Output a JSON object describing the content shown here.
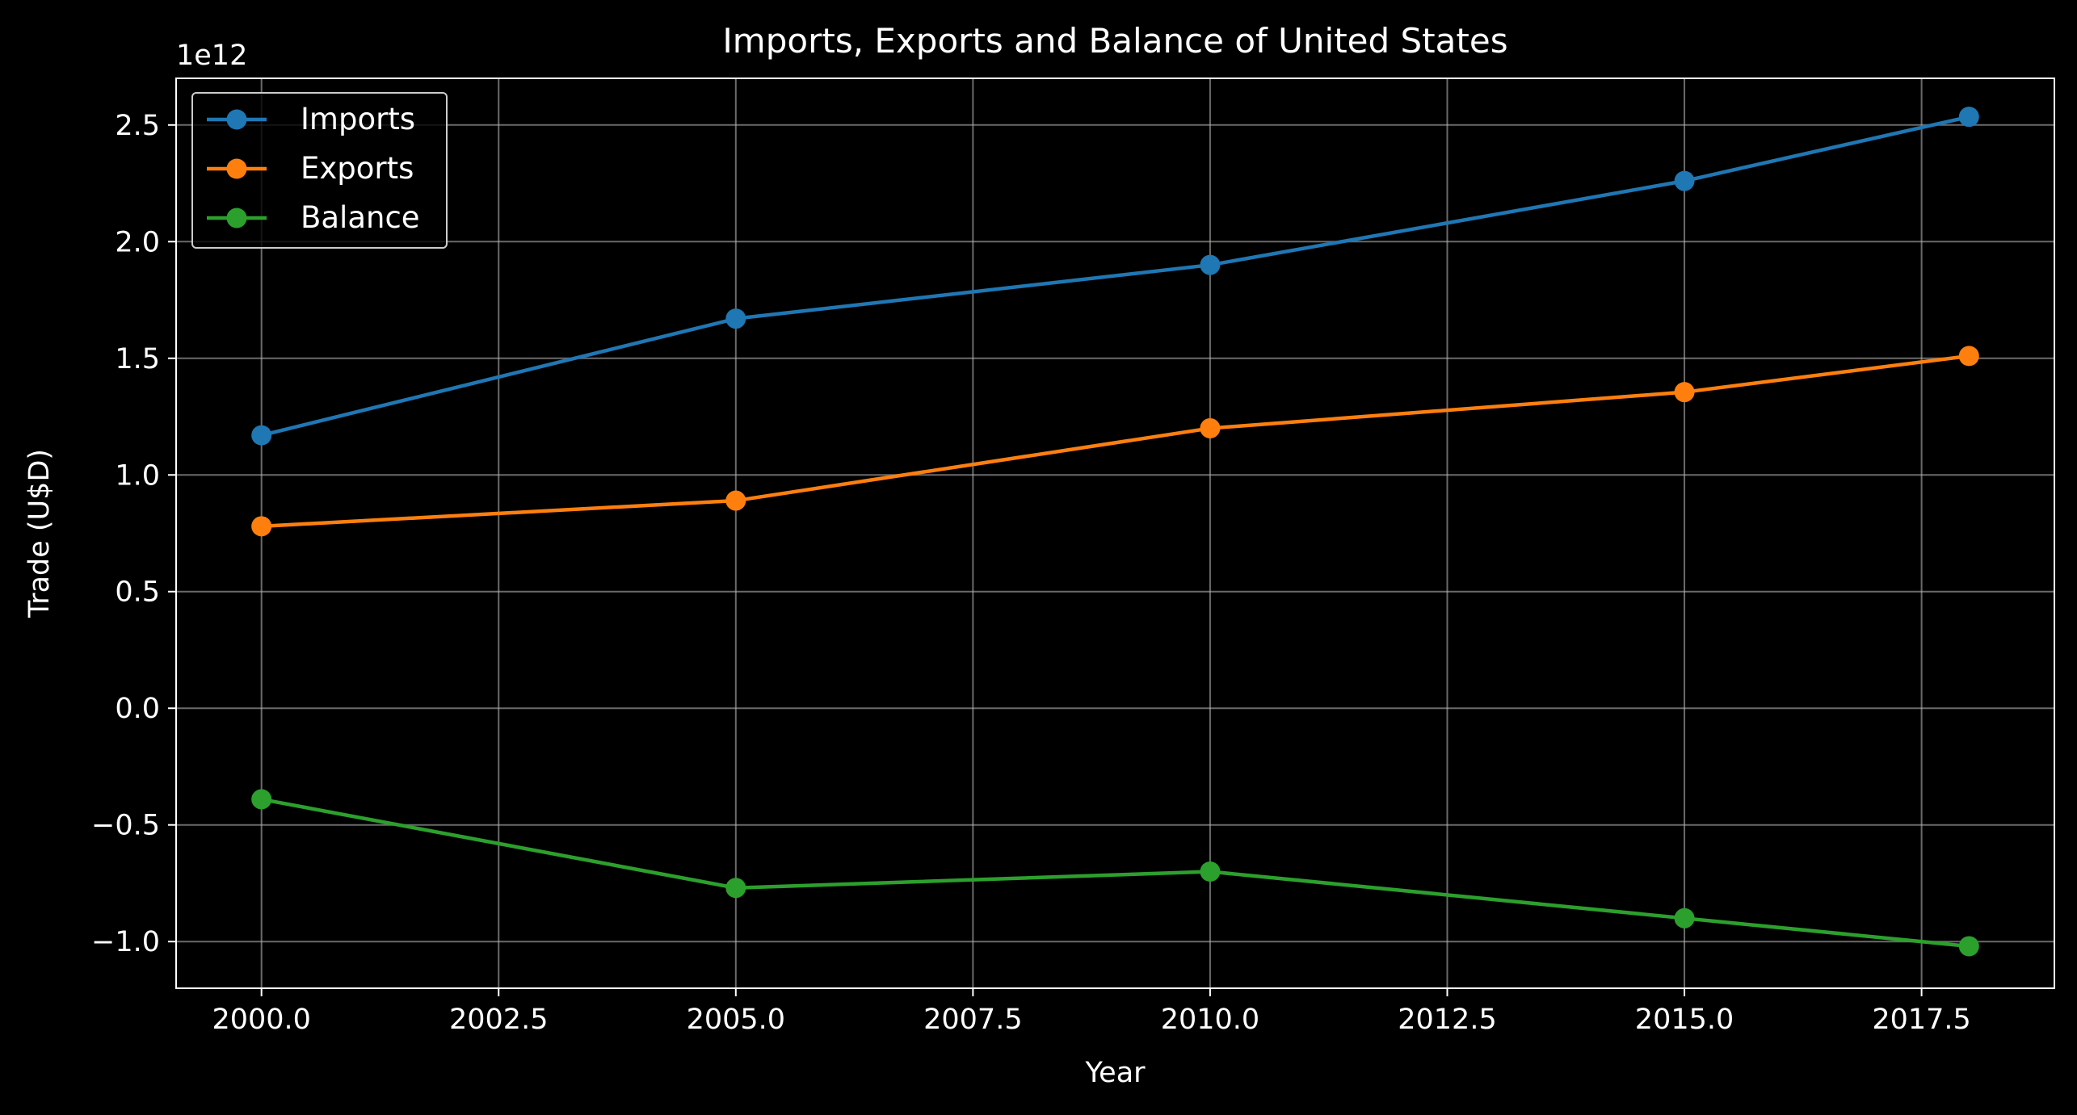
{
  "chart_data": {
    "type": "line",
    "title": "Imports, Exports and Balance of United States",
    "xlabel": "Year",
    "ylabel": "Trade (U$D)",
    "y_offset_label": "1e12",
    "x": [
      2000,
      2005,
      2010,
      2015,
      2018
    ],
    "series": [
      {
        "name": "Imports",
        "color": "#1f77b4",
        "values": [
          1170000000000.0,
          1670000000000.0,
          1900000000000.0,
          2260000000000.0,
          2535000000000.0
        ]
      },
      {
        "name": "Exports",
        "color": "#ff7f0e",
        "values": [
          780000000000.0,
          890000000000.0,
          1200000000000.0,
          1355000000000.0,
          1510000000000.0
        ]
      },
      {
        "name": "Balance",
        "color": "#2ca02c",
        "values": [
          -390000000000.0,
          -770000000000.0,
          -700000000000.0,
          -900000000000.0,
          -1020000000000.0
        ]
      }
    ],
    "xlim": [
      1999.1,
      2018.9
    ],
    "ylim": [
      -1200000000000.0,
      2700000000000.0
    ],
    "x_ticks": [
      2000,
      2002.5,
      2005,
      2007.5,
      2010,
      2012.5,
      2015,
      2017.5
    ],
    "x_tick_labels": [
      "2000.0",
      "2002.5",
      "2005.0",
      "2007.5",
      "2010.0",
      "2012.5",
      "2015.0",
      "2017.5"
    ],
    "y_ticks": [
      -1000000000000.0,
      -500000000000.0,
      0,
      500000000000.0,
      1000000000000.0,
      1500000000000.0,
      2000000000000.0,
      2500000000000.0
    ],
    "y_tick_labels": [
      "−1.0",
      "−0.5",
      "0.0",
      "0.5",
      "1.0",
      "1.5",
      "2.0",
      "2.5"
    ],
    "grid": true,
    "legend_position": "top-left",
    "background": "#000000",
    "foreground": "#ffffff"
  }
}
